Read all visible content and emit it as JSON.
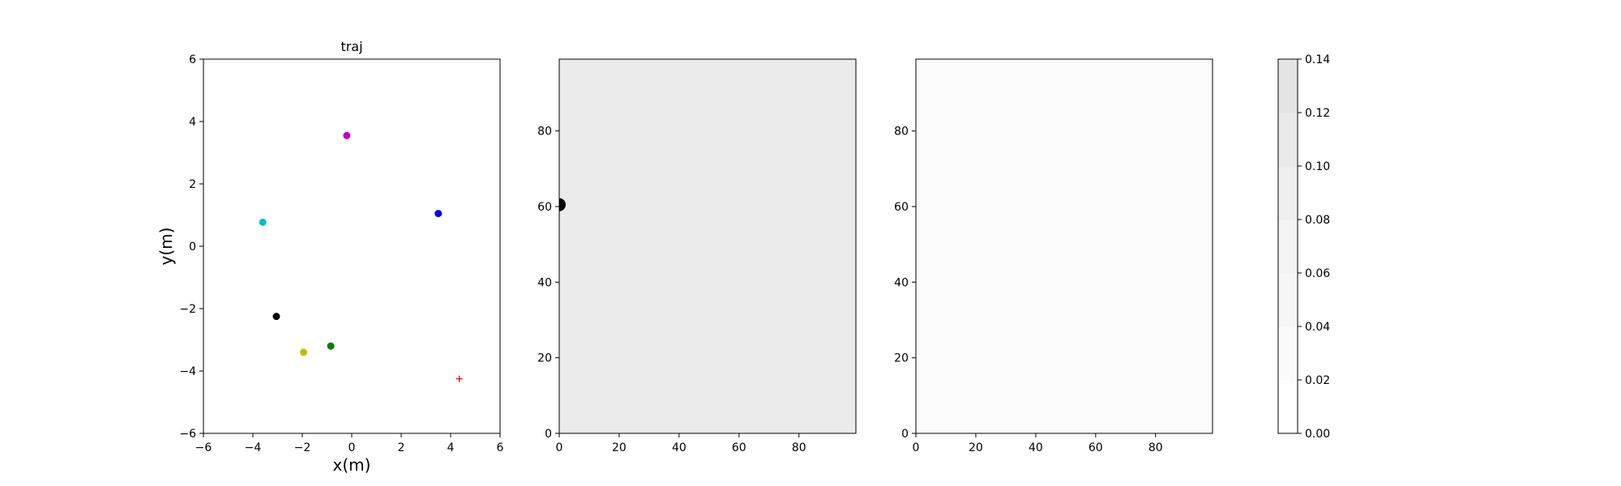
{
  "chart_data": [
    {
      "type": "scatter",
      "title": "traj",
      "xlabel": "x(m)",
      "ylabel": "y(m)",
      "xlim": [
        -6,
        6
      ],
      "ylim": [
        -6,
        6
      ],
      "xticks": [
        -6,
        -4,
        -2,
        0,
        2,
        4,
        6
      ],
      "yticks": [
        -6,
        -4,
        -2,
        0,
        2,
        4,
        6
      ],
      "grid": false,
      "points": [
        {
          "x": -0.2,
          "y": 3.55,
          "color": "#c000c0",
          "marker": "circle"
        },
        {
          "x": 3.5,
          "y": 1.05,
          "color": "#0000e0",
          "marker": "circle"
        },
        {
          "x": -3.6,
          "y": 0.77,
          "color": "#00bfbf",
          "marker": "circle"
        },
        {
          "x": -3.05,
          "y": -2.25,
          "color": "#000000",
          "marker": "circle"
        },
        {
          "x": -0.85,
          "y": -3.2,
          "color": "#007f00",
          "marker": "circle"
        },
        {
          "x": -1.95,
          "y": -3.4,
          "color": "#bfbf00",
          "marker": "circle"
        },
        {
          "x": 4.35,
          "y": -4.25,
          "color": "#ff0000",
          "marker": "plus"
        }
      ]
    },
    {
      "type": "heatmap",
      "xlim": [
        0,
        99
      ],
      "ylim": [
        0,
        99
      ],
      "xticks": [
        0,
        20,
        40,
        60,
        80
      ],
      "yticks": [
        0,
        20,
        40,
        60,
        80
      ],
      "fill_value": 0.1,
      "fill_color": "#ebebeb",
      "hotspot": {
        "x": 0,
        "y": 60.5,
        "color": "#000000"
      }
    },
    {
      "type": "heatmap",
      "xlim": [
        0,
        99
      ],
      "ylim": [
        0,
        99
      ],
      "xticks": [
        0,
        20,
        40,
        60,
        80
      ],
      "yticks": [
        0,
        20,
        40,
        60,
        80
      ],
      "fill_value": 0.01,
      "fill_color": "#fcfcfc"
    },
    {
      "type": "colorbar",
      "range": [
        0,
        0.14
      ],
      "ticks": [
        "0.00",
        "0.02",
        "0.04",
        "0.06",
        "0.08",
        "0.10",
        "0.12",
        "0.14"
      ],
      "level_colors": [
        "#fefefe",
        "#fbfbfb",
        "#f7f7f7",
        "#f3f3f3",
        "#efefef",
        "#eaeaea",
        "#e4e4e4"
      ]
    }
  ]
}
